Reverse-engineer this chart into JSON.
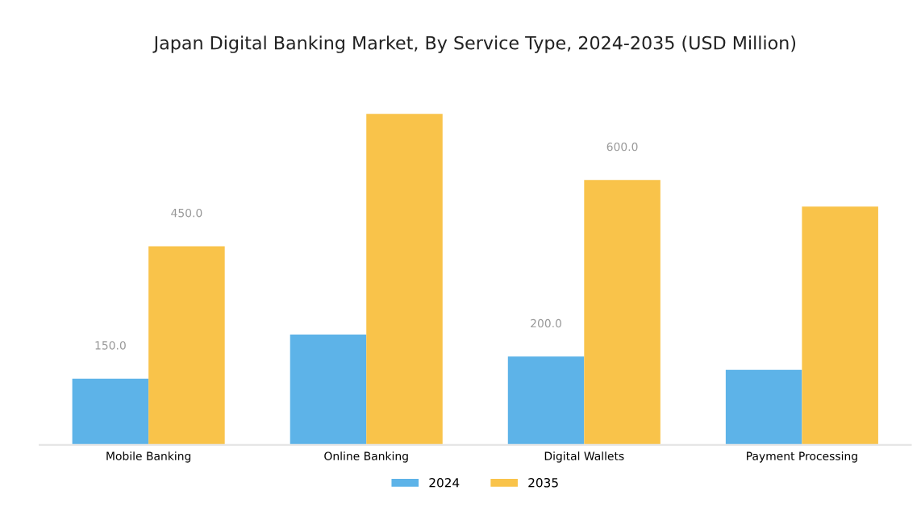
{
  "chart_data": {
    "type": "bar",
    "title": "Japan Digital Banking Market, By Service Type, 2024-2035 (USD Million)",
    "categories": [
      "Mobile Banking",
      "Online Banking",
      "Digital Wallets",
      "Payment Processing"
    ],
    "series": [
      {
        "name": "2024",
        "color": "#5db3e8",
        "values": [
          150,
          250,
          200,
          170
        ],
        "value_labels": [
          "150.0",
          null,
          "200.0",
          null
        ]
      },
      {
        "name": "2035",
        "color": "#f9c34a",
        "values": [
          450,
          750,
          600,
          540
        ],
        "value_labels": [
          "450.0",
          null,
          "600.0",
          null
        ]
      }
    ],
    "legend": "bottom",
    "grid": false
  }
}
